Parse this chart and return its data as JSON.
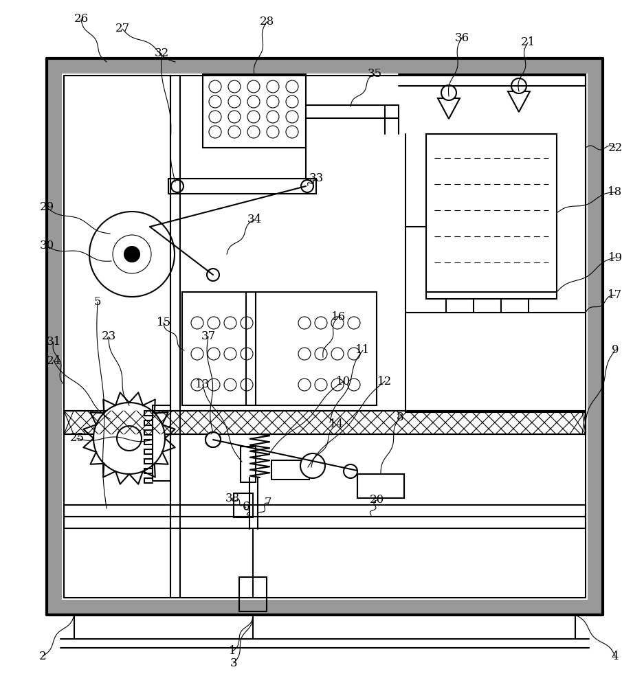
{
  "bg_color": "#ffffff",
  "lc": "#000000",
  "lw": 1.5,
  "tlw": 0.8,
  "thk": 3.0
}
